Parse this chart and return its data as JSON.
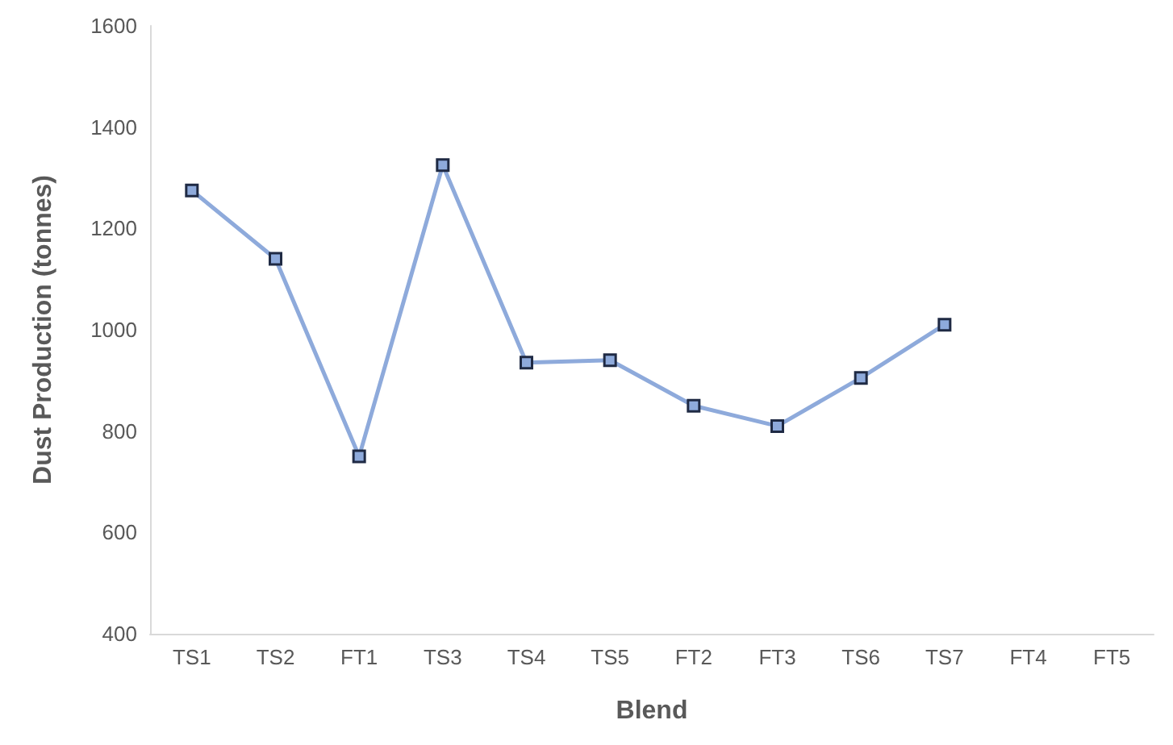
{
  "chart_data": {
    "type": "line",
    "xlabel": "Blend",
    "ylabel": "Dust Production (tonnes)",
    "categories": [
      "TS1",
      "TS2",
      "FT1",
      "TS3",
      "TS4",
      "TS5",
      "FT2",
      "FT3",
      "TS6",
      "TS7",
      "FT4",
      "FT5"
    ],
    "series": [
      {
        "color": "#8eaadb",
        "values": [
          1275,
          1140,
          750,
          1325,
          935,
          940,
          850,
          810,
          905,
          1010,
          null,
          null
        ]
      }
    ],
    "ylim": [
      400,
      1600
    ],
    "yticks": [
      400,
      600,
      800,
      1000,
      1200,
      1400,
      1600
    ],
    "grid": false,
    "marker": "square",
    "line_style": "solid"
  }
}
